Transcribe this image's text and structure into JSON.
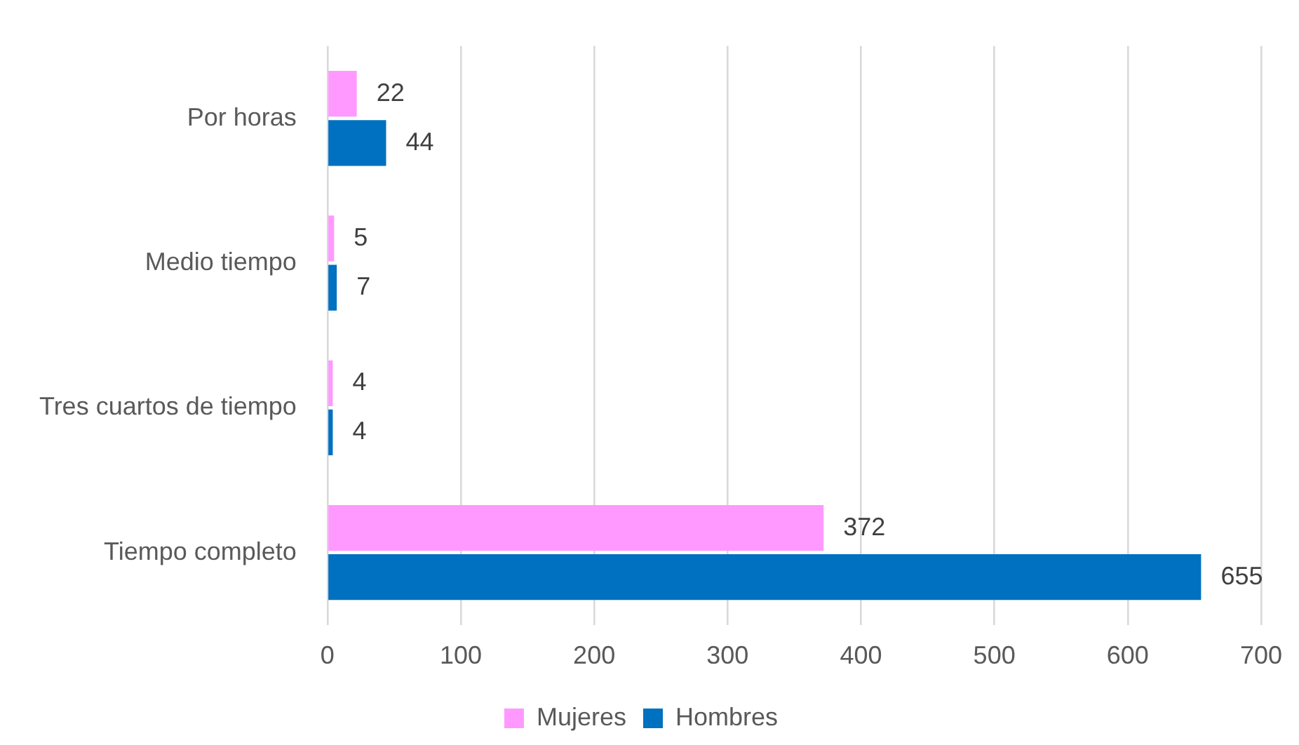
{
  "chart_data": {
    "type": "bar",
    "orientation": "horizontal",
    "categories": [
      "Por horas",
      "Medio tiempo",
      "Tres cuartos de tiempo",
      "Tiempo completo"
    ],
    "series": [
      {
        "name": "Mujeres",
        "color": "#ff99ff",
        "values": [
          22,
          5,
          4,
          372
        ]
      },
      {
        "name": "Hombres",
        "color": "#0070c0",
        "values": [
          44,
          7,
          4,
          655
        ]
      }
    ],
    "xlim": [
      0,
      700
    ],
    "xticks": [
      0,
      100,
      200,
      300,
      400,
      500,
      600,
      700
    ],
    "grid": "x",
    "legend": "bottom",
    "data_labels": true
  }
}
